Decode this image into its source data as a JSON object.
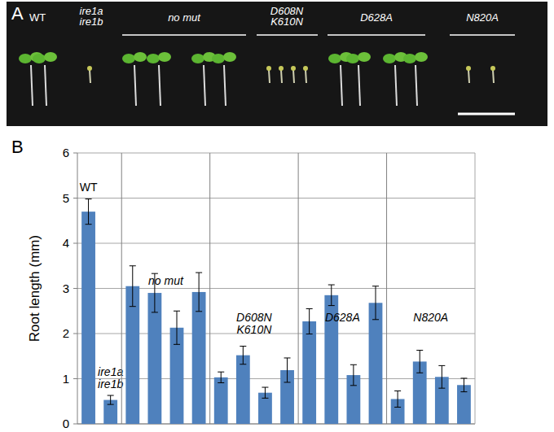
{
  "panel_a": {
    "label": "A",
    "labels": [
      "WT",
      "ire1a\nire1b",
      "no mut",
      "D608N\nK610N",
      "D628A",
      "N820A"
    ]
  },
  "chart_data": {
    "type": "bar",
    "panel_label": "B",
    "ylabel": "Root length (mm)",
    "color": "#4f81bd",
    "ylim": [
      0,
      6
    ],
    "yticks": [
      0,
      1,
      2,
      3,
      4,
      5,
      6
    ],
    "grid": true,
    "groups": [
      {
        "name": "WT",
        "values": [
          4.7
        ],
        "errors": [
          0.28
        ]
      },
      {
        "name": "ire1a\nire1b",
        "values": [
          0.53
        ],
        "errors": [
          0.1
        ]
      },
      {
        "name": "no mut",
        "values": [
          3.05,
          2.9,
          2.13,
          2.92
        ],
        "errors": [
          0.45,
          0.43,
          0.37,
          0.43
        ]
      },
      {
        "name": "D608N\nK610N",
        "values": [
          1.03,
          1.52,
          0.69,
          1.19
        ],
        "errors": [
          0.12,
          0.2,
          0.12,
          0.27
        ]
      },
      {
        "name": "D628A",
        "values": [
          2.27,
          2.85,
          1.08,
          2.68
        ],
        "errors": [
          0.28,
          0.23,
          0.23,
          0.37
        ]
      },
      {
        "name": "N820A",
        "values": [
          0.55,
          1.38,
          1.04,
          0.86
        ],
        "errors": [
          0.18,
          0.25,
          0.25,
          0.15
        ]
      }
    ]
  }
}
